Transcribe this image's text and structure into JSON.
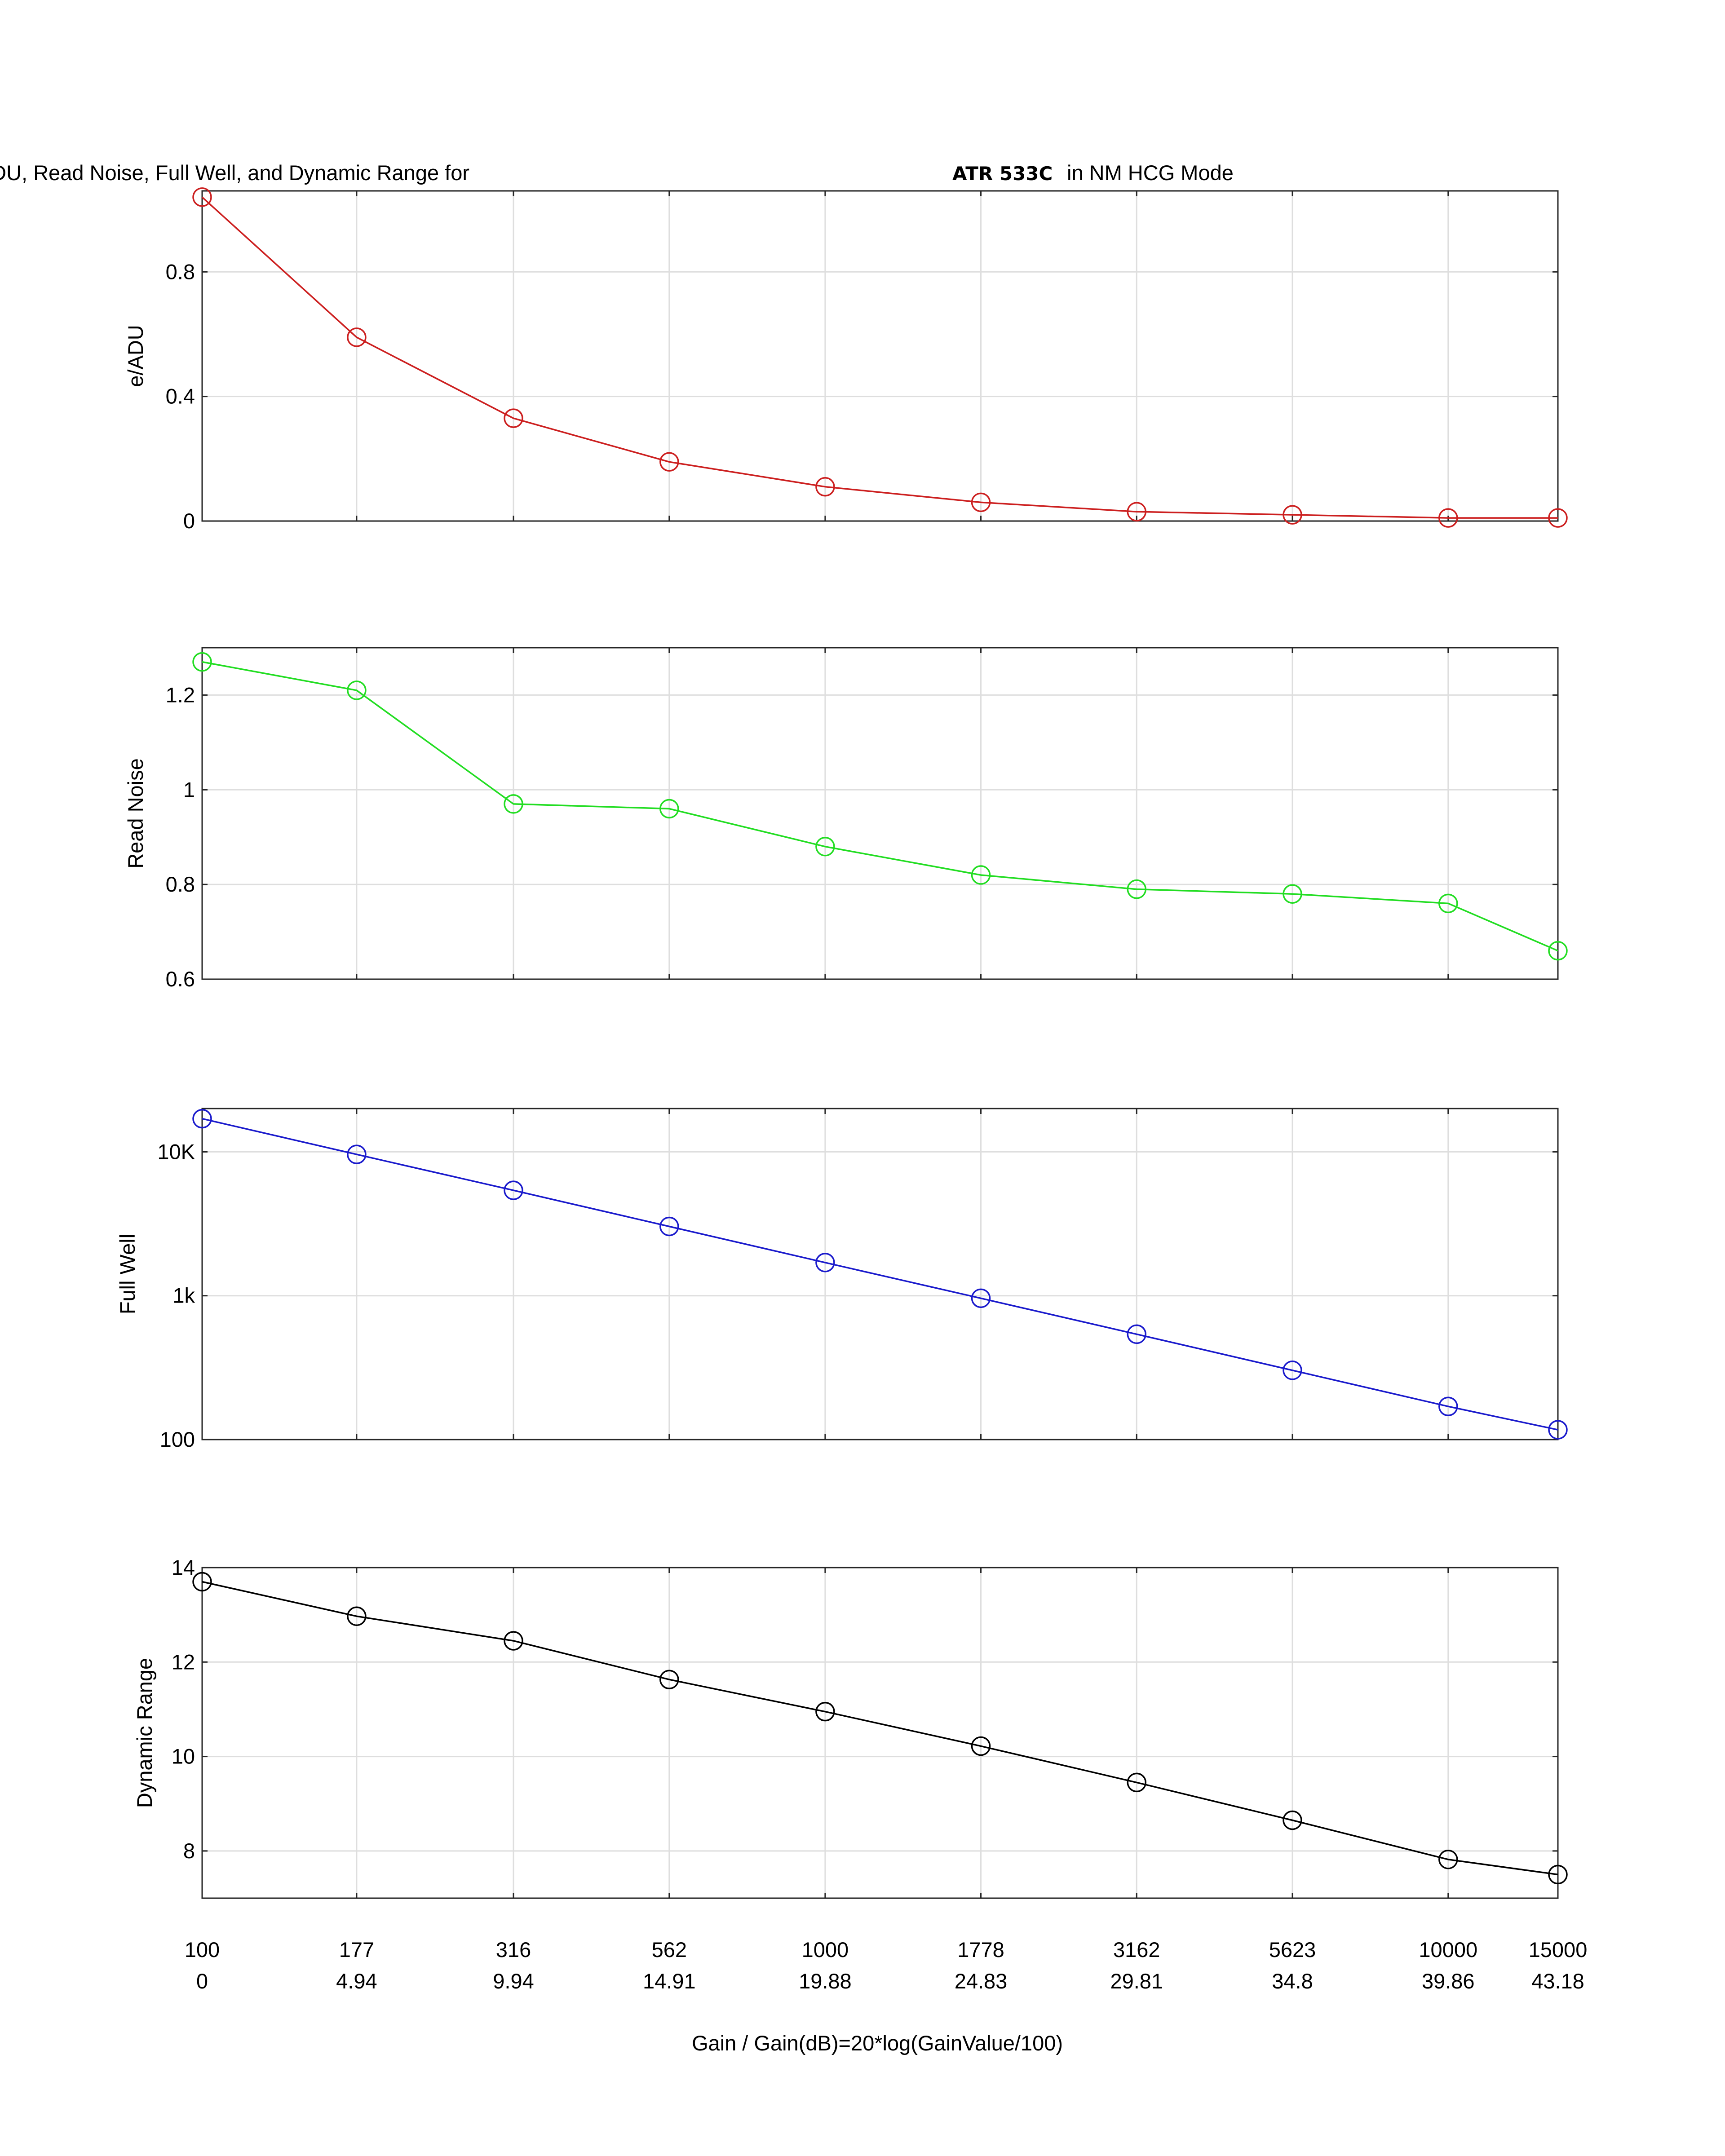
{
  "figure": {
    "title_prefix": "e/ADU, Read Noise, Full Well, and Dynamic Range for",
    "title_model": "ATR 533C",
    "title_suffix": "in NM HCG Mode",
    "xlabel": "Gain / Gain(dB)=20*log(GainValue/100)"
  },
  "chart_data": [
    {
      "type": "line",
      "ylabel": "e/ADU",
      "x": [
        100,
        177,
        316,
        562,
        1000,
        1778,
        3162,
        5623,
        10000,
        15000
      ],
      "x_tick_labels": [
        "100",
        "177",
        "316",
        "562",
        "1000",
        "1778",
        "3162",
        "5623",
        "10000",
        "15000"
      ],
      "x_tick_labels_db": [
        "0",
        "4.94",
        "9.94",
        "14.91",
        "19.88",
        "24.83",
        "29.81",
        "34.8",
        "39.86",
        "43.18"
      ],
      "series": [
        {
          "values": [
            1.04,
            0.59,
            0.33,
            0.19,
            0.11,
            0.06,
            0.03,
            0.02,
            0.01,
            0.01
          ],
          "color": "#cc1f1f"
        }
      ],
      "ylim": [
        0,
        1.06
      ],
      "yticks": [
        0,
        0.4,
        0.8
      ],
      "ytick_labels": [
        "0",
        "0.4",
        "0.8"
      ],
      "yscale": "linear",
      "grid": true,
      "marker": "circle"
    },
    {
      "type": "line",
      "ylabel": "Read Noise",
      "x": [
        100,
        177,
        316,
        562,
        1000,
        1778,
        3162,
        5623,
        10000,
        15000
      ],
      "series": [
        {
          "values": [
            1.27,
            1.21,
            0.97,
            0.96,
            0.88,
            0.82,
            0.79,
            0.78,
            0.76,
            0.66
          ],
          "color": "#22dd22"
        }
      ],
      "ylim": [
        0.6,
        1.3
      ],
      "yticks": [
        0.6,
        0.8,
        1,
        1.2
      ],
      "ytick_labels": [
        "0.6",
        "0.8",
        "1",
        "1.2"
      ],
      "yscale": "linear",
      "grid": true,
      "marker": "circle"
    },
    {
      "type": "line",
      "ylabel": "Full Well",
      "x": [
        100,
        177,
        316,
        562,
        1000,
        1778,
        3162,
        5623,
        10000,
        15000
      ],
      "series": [
        {
          "values": [
            17000,
            9600,
            5400,
            3030,
            1700,
            960,
            540,
            303,
            170,
            117
          ],
          "color": "#1a1acc"
        }
      ],
      "ylim": [
        100,
        20000
      ],
      "yticks": [
        100,
        1000,
        10000
      ],
      "ytick_labels": [
        "100",
        "1k",
        "10K"
      ],
      "yscale": "log",
      "grid": true,
      "marker": "circle"
    },
    {
      "type": "line",
      "ylabel": "Dynamic Range",
      "x": [
        100,
        177,
        316,
        562,
        1000,
        1778,
        3162,
        5623,
        10000,
        15000
      ],
      "series": [
        {
          "values": [
            13.7,
            12.97,
            12.45,
            11.63,
            10.95,
            10.22,
            9.45,
            8.65,
            7.82,
            7.5
          ],
          "color": "#000000"
        }
      ],
      "ylim": [
        7,
        14
      ],
      "yticks": [
        8,
        10,
        12,
        14
      ],
      "ytick_labels": [
        "8",
        "10",
        "12",
        "14"
      ],
      "yscale": "linear",
      "grid": true,
      "marker": "circle"
    }
  ]
}
